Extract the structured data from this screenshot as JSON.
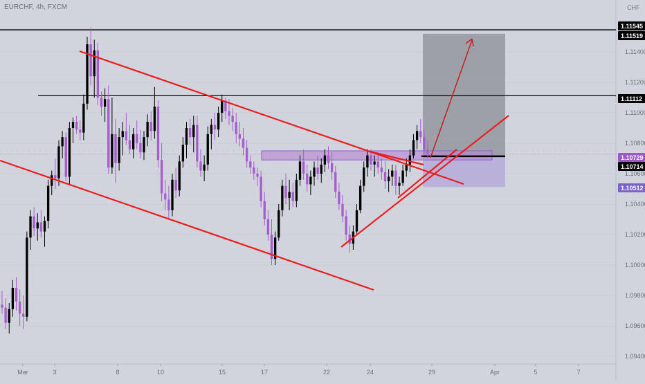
{
  "chart_data": {
    "type": "candlestick",
    "symbol": "EURCHF, 4h, FXCM",
    "currency": "CHF",
    "ylim": [
      1.0935,
      1.1165
    ],
    "y_ticks": [
      "1.11400",
      "1.11200",
      "1.11000",
      "1.10800",
      "1.10600",
      "1.10400",
      "1.10200",
      "1.10000",
      "1.09800",
      "1.09600",
      "1.09400"
    ],
    "x_ticks": [
      "Mar",
      "3",
      "8",
      "10",
      "15",
      "17",
      "22",
      "24",
      "29",
      "Apr",
      "5",
      "7"
    ],
    "price_badges": [
      {
        "label": "1.11545",
        "color": "#000000"
      },
      {
        "label": "1.11519",
        "color": "#000000"
      },
      {
        "label": "1.11112",
        "color": "#000000"
      },
      {
        "label": "1.10729",
        "color": "#9c58c8"
      },
      {
        "label": "1.10714",
        "color": "#000000"
      },
      {
        "label": "1.10512",
        "color": "#7b63c9"
      }
    ],
    "horizontal_levels": [
      1.11545,
      1.11112,
      1.10714
    ],
    "position_box": {
      "entry": 1.10714,
      "target": 1.11519,
      "stop": 1.10512
    },
    "trendlines": 5,
    "colors": {
      "up_candle": "#000000",
      "down_candle": "#a75ccd",
      "trendline": "#ee1c1c",
      "background": "#d1d4dc"
    },
    "candles": [
      [
        1.0974,
        1.0983,
        1.0968,
        1.0972
      ],
      [
        1.0972,
        1.0978,
        1.0958,
        1.0962
      ],
      [
        1.0962,
        1.0975,
        1.0955,
        1.0971
      ],
      [
        1.0971,
        1.099,
        1.0966,
        1.0985
      ],
      [
        1.0985,
        1.0992,
        1.097,
        1.0976
      ],
      [
        1.0976,
        1.0984,
        1.096,
        1.0968
      ],
      [
        1.0968,
        1.098,
        1.0958,
        1.0966
      ],
      [
        1.0966,
        1.1022,
        1.0963,
        1.1018
      ],
      [
        1.1018,
        1.1036,
        1.101,
        1.1032
      ],
      [
        1.1032,
        1.1038,
        1.1019,
        1.1024
      ],
      [
        1.1024,
        1.1034,
        1.1016,
        1.1028
      ],
      [
        1.1028,
        1.1036,
        1.1018,
        1.1022
      ],
      [
        1.1022,
        1.1032,
        1.1012,
        1.1029
      ],
      [
        1.1029,
        1.1056,
        1.1024,
        1.1052
      ],
      [
        1.1052,
        1.1062,
        1.1046,
        1.1059
      ],
      [
        1.1059,
        1.107,
        1.105,
        1.1057
      ],
      [
        1.1057,
        1.1082,
        1.1052,
        1.1078
      ],
      [
        1.1078,
        1.1088,
        1.107,
        1.1084
      ],
      [
        1.1084,
        1.1087,
        1.1055,
        1.1058
      ],
      [
        1.1058,
        1.1094,
        1.1053,
        1.109
      ],
      [
        1.109,
        1.1097,
        1.108,
        1.1094
      ],
      [
        1.1094,
        1.1098,
        1.1086,
        1.1089
      ],
      [
        1.1089,
        1.1095,
        1.1082,
        1.1087
      ],
      [
        1.1087,
        1.1112,
        1.1082,
        1.1106
      ],
      [
        1.1106,
        1.115,
        1.1102,
        1.1145
      ],
      [
        1.1145,
        1.1156,
        1.1118,
        1.1124
      ],
      [
        1.1124,
        1.1148,
        1.111,
        1.1141
      ],
      [
        1.1141,
        1.1146,
        1.1105,
        1.111
      ],
      [
        1.111,
        1.1114,
        1.1098,
        1.1104
      ],
      [
        1.1104,
        1.1116,
        1.1094,
        1.1109
      ],
      [
        1.1109,
        1.1118,
        1.106,
        1.1064
      ],
      [
        1.1064,
        1.111,
        1.106,
        1.1086
      ],
      [
        1.1086,
        1.1096,
        1.1054,
        1.1067
      ],
      [
        1.1067,
        1.109,
        1.1062,
        1.1084
      ],
      [
        1.1084,
        1.1094,
        1.1072,
        1.1088
      ],
      [
        1.1088,
        1.11,
        1.1079,
        1.1082
      ],
      [
        1.1082,
        1.1092,
        1.1073,
        1.1076
      ],
      [
        1.1076,
        1.109,
        1.107,
        1.1086
      ],
      [
        1.1086,
        1.1095,
        1.1076,
        1.108
      ],
      [
        1.108,
        1.1089,
        1.107,
        1.1074
      ],
      [
        1.1074,
        1.1088,
        1.1069,
        1.1084
      ],
      [
        1.1084,
        1.1099,
        1.1078,
        1.1094
      ],
      [
        1.1094,
        1.1101,
        1.1082,
        1.1088
      ],
      [
        1.1088,
        1.1117,
        1.1083,
        1.1104
      ],
      [
        1.1104,
        1.1108,
        1.1064,
        1.1069
      ],
      [
        1.1069,
        1.108,
        1.1042,
        1.1047
      ],
      [
        1.1047,
        1.1056,
        1.1036,
        1.1043
      ],
      [
        1.1043,
        1.1052,
        1.103,
        1.1036
      ],
      [
        1.1036,
        1.106,
        1.1032,
        1.1056
      ],
      [
        1.1056,
        1.1064,
        1.1044,
        1.1049
      ],
      [
        1.1049,
        1.1072,
        1.1045,
        1.1068
      ],
      [
        1.1068,
        1.1084,
        1.1064,
        1.1079
      ],
      [
        1.1079,
        1.1094,
        1.107,
        1.109
      ],
      [
        1.109,
        1.1096,
        1.1079,
        1.1084
      ],
      [
        1.1084,
        1.1098,
        1.1074,
        1.1092
      ],
      [
        1.1092,
        1.1098,
        1.1064,
        1.1068
      ],
      [
        1.1068,
        1.1076,
        1.1058,
        1.1062
      ],
      [
        1.1062,
        1.1072,
        1.1055,
        1.1066
      ],
      [
        1.1066,
        1.1091,
        1.1062,
        1.1086
      ],
      [
        1.1086,
        1.1096,
        1.1076,
        1.1092
      ],
      [
        1.1092,
        1.11,
        1.1082,
        1.1089
      ],
      [
        1.1089,
        1.1104,
        1.1084,
        1.11
      ],
      [
        1.11,
        1.1112,
        1.1094,
        1.1108
      ],
      [
        1.1108,
        1.111,
        1.1096,
        1.1101
      ],
      [
        1.1101,
        1.1109,
        1.1092,
        1.1098
      ],
      [
        1.1098,
        1.1103,
        1.1088,
        1.1094
      ],
      [
        1.1094,
        1.11,
        1.108,
        1.1086
      ],
      [
        1.1086,
        1.1094,
        1.1078,
        1.1083
      ],
      [
        1.1083,
        1.109,
        1.1072,
        1.1077
      ],
      [
        1.1077,
        1.1082,
        1.1064,
        1.1068
      ],
      [
        1.1068,
        1.1072,
        1.106,
        1.1064
      ],
      [
        1.1064,
        1.1068,
        1.1056,
        1.106
      ],
      [
        1.106,
        1.1064,
        1.1052,
        1.1058
      ],
      [
        1.1058,
        1.1062,
        1.1038,
        1.1042
      ],
      [
        1.1042,
        1.1048,
        1.1026,
        1.103
      ],
      [
        1.103,
        1.1036,
        1.1016,
        1.102
      ],
      [
        1.102,
        1.103,
        1.1,
        1.1004
      ],
      [
        1.1004,
        1.1022,
        1.1,
        1.1018
      ],
      [
        1.1018,
        1.104,
        1.1016,
        1.1036
      ],
      [
        1.1036,
        1.1056,
        1.1032,
        1.1052
      ],
      [
        1.1052,
        1.106,
        1.104,
        1.1044
      ],
      [
        1.1044,
        1.1056,
        1.1036,
        1.1048
      ],
      [
        1.1048,
        1.1054,
        1.1038,
        1.1042
      ],
      [
        1.1042,
        1.106,
        1.1038,
        1.1056
      ],
      [
        1.1056,
        1.1072,
        1.1052,
        1.1068
      ],
      [
        1.1068,
        1.1076,
        1.1056,
        1.106
      ],
      [
        1.106,
        1.1066,
        1.1048,
        1.1053
      ],
      [
        1.1053,
        1.1062,
        1.1046,
        1.1058
      ],
      [
        1.1058,
        1.1068,
        1.1052,
        1.1064
      ],
      [
        1.1064,
        1.1072,
        1.1056,
        1.106
      ],
      [
        1.106,
        1.107,
        1.1054,
        1.1066
      ],
      [
        1.1066,
        1.1076,
        1.1061,
        1.1072
      ],
      [
        1.1072,
        1.1078,
        1.1063,
        1.1067
      ],
      [
        1.1067,
        1.1074,
        1.1056,
        1.1061
      ],
      [
        1.1061,
        1.1065,
        1.1044,
        1.1048
      ],
      [
        1.1048,
        1.1054,
        1.1036,
        1.104
      ],
      [
        1.104,
        1.1046,
        1.1028,
        1.1032
      ],
      [
        1.1032,
        1.1036,
        1.1016,
        1.102
      ],
      [
        1.102,
        1.1026,
        1.1008,
        1.1014
      ],
      [
        1.1014,
        1.1026,
        1.101,
        1.1022
      ],
      [
        1.1022,
        1.104,
        1.102,
        1.1036
      ],
      [
        1.1036,
        1.1056,
        1.1034,
        1.1052
      ],
      [
        1.1052,
        1.1068,
        1.1048,
        1.1064
      ],
      [
        1.1064,
        1.1076,
        1.1058,
        1.1072
      ],
      [
        1.1072,
        1.1076,
        1.1062,
        1.1066
      ],
      [
        1.1066,
        1.1072,
        1.1058,
        1.1068
      ],
      [
        1.1068,
        1.1074,
        1.106,
        1.1064
      ],
      [
        1.1064,
        1.107,
        1.1056,
        1.1061
      ],
      [
        1.1061,
        1.1068,
        1.105,
        1.1055
      ],
      [
        1.1055,
        1.1063,
        1.1048,
        1.1058
      ],
      [
        1.1058,
        1.1066,
        1.1052,
        1.1062
      ],
      [
        1.1062,
        1.1066,
        1.1046,
        1.1052
      ],
      [
        1.1052,
        1.1058,
        1.1046,
        1.1054
      ],
      [
        1.1054,
        1.1066,
        1.1052,
        1.1062
      ],
      [
        1.1062,
        1.107,
        1.1058,
        1.1066
      ],
      [
        1.1066,
        1.1076,
        1.1061,
        1.1072
      ],
      [
        1.1072,
        1.1086,
        1.107,
        1.1082
      ],
      [
        1.1082,
        1.1092,
        1.1076,
        1.1088
      ],
      [
        1.1088,
        1.1096,
        1.108,
        1.1084
      ],
      [
        1.1084,
        1.1089,
        1.1072,
        1.1076
      ],
      [
        1.1076,
        1.1082,
        1.107,
        1.1073
      ]
    ]
  }
}
